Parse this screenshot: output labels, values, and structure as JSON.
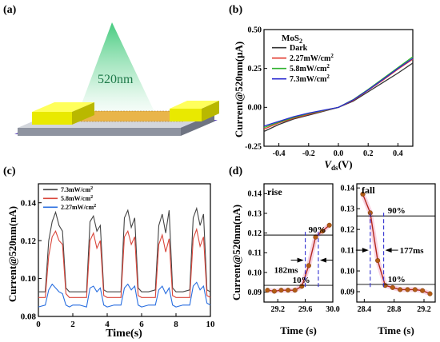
{
  "panels": {
    "a": "(a)",
    "b": "(b)",
    "c": "(c)",
    "d": "(d)"
  },
  "illustration": {
    "wavelength_label": "520nm",
    "substrate_colors": {
      "top": "#cfd2d8",
      "side": "#8f94a0",
      "bottom": "#6a52c6"
    },
    "electrode_color": "#f2f200",
    "beam_color": "#3cc878"
  },
  "chart_data": [
    {
      "id": "b",
      "type": "line",
      "xlabel_main": "V",
      "xlabel_sub": "ds",
      "xlabel_unit": "(V)",
      "ylabel": "Current@520nm(μA)",
      "xlim": [
        -0.5,
        0.5
      ],
      "ylim": [
        -0.25,
        0.5
      ],
      "xticks": [
        -0.4,
        -0.2,
        0.0,
        0.2,
        0.4
      ],
      "xtick_labels": [
        "-0.4",
        "-0.2",
        "0.0",
        "0.2",
        "0.4"
      ],
      "yticks": [
        -0.25,
        0.0,
        0.25,
        0.5
      ],
      "ytick_labels": [
        "-0.25",
        "0.00",
        "0.25",
        "0.50"
      ],
      "legend_title_main": "MoS",
      "legend_title_sub": "2",
      "legend_position": "top-left",
      "x": [
        -0.5,
        -0.4,
        -0.3,
        -0.2,
        -0.1,
        0.0,
        0.1,
        0.2,
        0.3,
        0.4,
        0.5
      ],
      "series": [
        {
          "name_main": "Dark",
          "name_sup": "",
          "color": "#333333",
          "y": [
            -0.155,
            -0.11,
            -0.075,
            -0.05,
            -0.025,
            0.0,
            0.04,
            0.1,
            0.16,
            0.22,
            0.285
          ]
        },
        {
          "name_main": "2.27mW/cm",
          "name_sup": "2",
          "color": "#e23b30",
          "y": [
            -0.14,
            -0.1,
            -0.07,
            -0.045,
            -0.022,
            0.0,
            0.045,
            0.11,
            0.175,
            0.245,
            0.31
          ]
        },
        {
          "name_main": "5.8mW/cm",
          "name_sup": "2",
          "color": "#2fb12f",
          "y": [
            -0.13,
            -0.095,
            -0.065,
            -0.04,
            -0.02,
            0.0,
            0.05,
            0.115,
            0.185,
            0.255,
            0.325
          ]
        },
        {
          "name_main": "7.3mW/cm",
          "name_sup": "2",
          "color": "#2b2bd0",
          "y": [
            -0.12,
            -0.09,
            -0.06,
            -0.037,
            -0.018,
            0.0,
            0.048,
            0.112,
            0.18,
            0.25,
            0.315
          ]
        }
      ]
    },
    {
      "id": "c",
      "type": "line",
      "xlabel": "Time(s)",
      "ylabel": "Current@520nm(nA)",
      "xlim": [
        0,
        10
      ],
      "ylim": [
        0.08,
        0.15
      ],
      "xticks": [
        0,
        2,
        4,
        6,
        8,
        10
      ],
      "xtick_labels": [
        "0",
        "2",
        "4",
        "6",
        "8",
        "10"
      ],
      "yticks": [
        0.08,
        0.1,
        0.12,
        0.14
      ],
      "ytick_labels": [
        "0.08",
        "0.10",
        "0.12",
        "0.14"
      ],
      "legend_position": "top-left",
      "x": [
        0.0,
        0.4,
        0.6,
        0.8,
        1.0,
        1.2,
        1.4,
        1.6,
        1.8,
        2.0,
        2.4,
        2.8,
        3.0,
        3.2,
        3.4,
        3.6,
        3.8,
        4.0,
        4.4,
        4.8,
        5.0,
        5.2,
        5.4,
        5.6,
        5.8,
        6.0,
        6.4,
        6.8,
        7.0,
        7.2,
        7.4,
        7.6,
        7.8,
        8.0,
        8.4,
        8.8,
        9.0,
        9.2,
        9.4,
        9.6,
        9.8,
        10.0
      ],
      "series": [
        {
          "name_main": "7.3mW/cm",
          "name_sup": "2",
          "color": "#444444",
          "y": [
            0.093,
            0.093,
            0.12,
            0.13,
            0.135,
            0.128,
            0.125,
            0.095,
            0.093,
            0.093,
            0.093,
            0.093,
            0.13,
            0.133,
            0.125,
            0.128,
            0.094,
            0.093,
            0.093,
            0.093,
            0.132,
            0.136,
            0.127,
            0.132,
            0.095,
            0.093,
            0.093,
            0.094,
            0.128,
            0.134,
            0.124,
            0.136,
            0.095,
            0.093,
            0.093,
            0.094,
            0.132,
            0.137,
            0.128,
            0.134,
            0.094,
            0.093
          ]
        },
        {
          "name_main": "5.8mW/cm",
          "name_sup": "2",
          "color": "#d9463b",
          "y": [
            0.09,
            0.09,
            0.112,
            0.122,
            0.125,
            0.12,
            0.118,
            0.092,
            0.09,
            0.09,
            0.09,
            0.09,
            0.12,
            0.124,
            0.116,
            0.12,
            0.091,
            0.09,
            0.09,
            0.09,
            0.122,
            0.125,
            0.118,
            0.122,
            0.091,
            0.09,
            0.09,
            0.09,
            0.118,
            0.123,
            0.114,
            0.121,
            0.091,
            0.09,
            0.09,
            0.09,
            0.121,
            0.126,
            0.117,
            0.122,
            0.091,
            0.09
          ]
        },
        {
          "name_main": "2.27mW/cm",
          "name_sup": "2",
          "color": "#2a6fe0",
          "y": [
            0.085,
            0.086,
            0.094,
            0.097,
            0.095,
            0.093,
            0.092,
            0.086,
            0.085,
            0.086,
            0.086,
            0.085,
            0.095,
            0.096,
            0.093,
            0.095,
            0.086,
            0.085,
            0.086,
            0.086,
            0.095,
            0.097,
            0.094,
            0.096,
            0.086,
            0.085,
            0.086,
            0.086,
            0.094,
            0.096,
            0.092,
            0.095,
            0.086,
            0.085,
            0.086,
            0.086,
            0.096,
            0.098,
            0.094,
            0.096,
            0.087,
            0.086
          ]
        }
      ]
    },
    {
      "id": "d-rise",
      "type": "line",
      "xlabel": "Time (s)",
      "ylabel": "Current@520nm(nA)",
      "title": "rise",
      "xlim": [
        29.0,
        30.0
      ],
      "ylim": [
        0.085,
        0.145
      ],
      "xticks": [
        29.2,
        29.6,
        30.0
      ],
      "xtick_labels": [
        "29.2",
        "29.6",
        "30.0"
      ],
      "yticks": [
        0.09,
        0.1,
        0.11,
        0.12,
        0.13,
        0.14
      ],
      "ytick_labels": [
        "0.09",
        "0.10",
        "0.11",
        "0.12",
        "0.13",
        "0.14"
      ],
      "color": "#b3281e",
      "marker_color": "#b35c14",
      "x": [
        29.05,
        29.15,
        29.25,
        29.35,
        29.45,
        29.55,
        29.65,
        29.75,
        29.85,
        29.95
      ],
      "y": [
        0.091,
        0.0905,
        0.091,
        0.091,
        0.091,
        0.093,
        0.1035,
        0.118,
        0.121,
        0.124
      ],
      "hlines": [
        0.119,
        0.0935
      ],
      "vlines": [
        29.6,
        29.79
      ],
      "annotations": {
        "upper": "90%",
        "lower": "10%",
        "time": "182ms"
      }
    },
    {
      "id": "d-fall",
      "type": "line",
      "title": "fall",
      "xlim": [
        28.3,
        29.35
      ],
      "ylim": [
        0.085,
        0.142
      ],
      "xticks": [
        28.4,
        28.8,
        29.2
      ],
      "xtick_labels": [
        "28.4",
        "28.8",
        "29.2"
      ],
      "yticks": [
        0.09,
        0.1,
        0.11,
        0.12,
        0.13,
        0.14
      ],
      "ytick_labels": [
        "0.09",
        "0.10",
        "0.11",
        "0.12",
        "0.13",
        "0.14"
      ],
      "color": "#b3281e",
      "marker_color": "#b35c14",
      "x": [
        28.38,
        28.48,
        28.58,
        28.68,
        28.78,
        28.88,
        28.98,
        29.08,
        29.18,
        29.28
      ],
      "y": [
        0.137,
        0.128,
        0.105,
        0.093,
        0.092,
        0.091,
        0.091,
        0.091,
        0.0905,
        0.089
      ],
      "hlines": [
        0.1265,
        0.0935
      ],
      "vlines": [
        28.48,
        28.66
      ],
      "annotations": {
        "upper": "90%",
        "lower": "10%",
        "time": "177ms"
      }
    }
  ]
}
